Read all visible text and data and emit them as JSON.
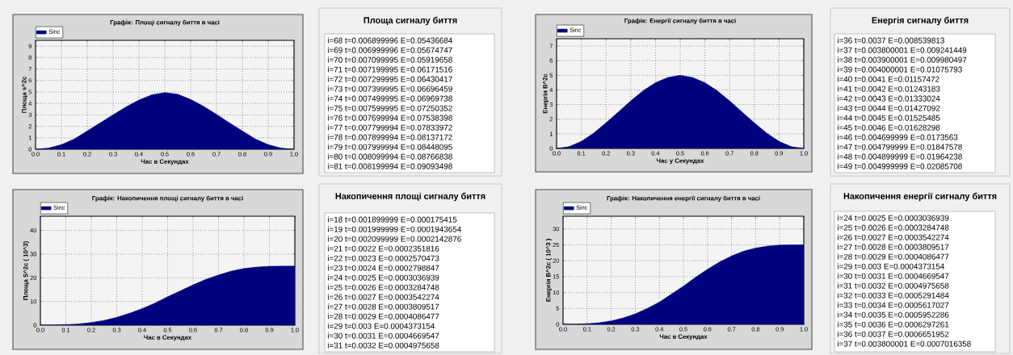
{
  "chart_data": [
    {
      "type": "area",
      "title": "Графік: Площі сигналу биття в часі",
      "xlabel": "Час в Секундах",
      "ylabel": "Площа s^2c",
      "legend": "top left",
      "grid": true,
      "x": [
        0,
        0.05,
        0.1,
        0.15,
        0.2,
        0.25,
        0.3,
        0.35,
        0.4,
        0.45,
        0.5,
        0.55,
        0.6,
        0.65,
        0.7,
        0.75,
        0.8,
        0.85,
        0.9,
        0.95,
        1.0
      ],
      "series": [
        {
          "name": "Sinc",
          "color": "#00007f",
          "values": [
            0,
            0.1,
            0.4,
            0.9,
            1.6,
            2.3,
            3.0,
            3.7,
            4.3,
            4.75,
            4.95,
            4.8,
            4.35,
            3.75,
            3.05,
            2.3,
            1.6,
            0.9,
            0.4,
            0.1,
            0
          ]
        }
      ],
      "xlim": [
        0,
        1.0
      ],
      "ylim": [
        0,
        9.5
      ],
      "xticks": [
        {
          "value": 0,
          "label": "0.0"
        },
        {
          "value": 0.1,
          "label": "0.1"
        },
        {
          "value": 0.2,
          "label": "0.2"
        },
        {
          "value": 0.3,
          "label": "0.3"
        },
        {
          "value": 0.4,
          "label": "0.4"
        },
        {
          "value": 0.5,
          "label": "0.5"
        },
        {
          "value": 0.6,
          "label": "0.6"
        },
        {
          "value": 0.7,
          "label": "0.7"
        },
        {
          "value": 0.8,
          "label": "0.8"
        },
        {
          "value": 0.9,
          "label": "0.9"
        },
        {
          "value": 1.0,
          "label": "1.0"
        }
      ],
      "yticks": [
        0,
        1,
        2,
        3,
        4,
        5,
        6,
        7,
        8,
        9
      ]
    },
    {
      "type": "other",
      "title": "Площа сигналу биття",
      "annotations": [
        "i=68 t=0.006899996 E=0.05436684",
        "i=69 t=0.006999996 E=0.05674747",
        "i=70 t=0.007099995 E=0.05919658",
        "i=71 t=0.007199995 E=0.06171516",
        "i=72 t=0.007299995 E=0.06430417",
        "i=73 t=0.007399995 E=0.06696459",
        "i=74 t=0.007499995 E=0.06969738",
        "i=75 t=0.007599995 E=0.07250352",
        "i=76 t=0.007699994 E=0.07538398",
        "i=77 t=0.007799994 E=0.07833972",
        "i=78 t=0.007899994 E=0.08137172",
        "i=79 t=0.007999994 E=0.08448095",
        "i=80 t=0.008099994 E=0.08766838",
        "i=81 t=0.008199994 E=0.09093498"
      ]
    },
    {
      "type": "area",
      "title": "Графік: Енергії сигналу биття в часі",
      "xlabel": "Час у Секундах",
      "ylabel": "Енергія B^2c",
      "legend": "top left",
      "grid": true,
      "x": [
        0,
        0.05,
        0.1,
        0.15,
        0.2,
        0.25,
        0.3,
        0.35,
        0.4,
        0.45,
        0.5,
        0.55,
        0.6,
        0.65,
        0.7,
        0.75,
        0.8,
        0.85,
        0.9,
        0.95,
        1.0
      ],
      "series": [
        {
          "name": "Sinc",
          "color": "#00007f",
          "values": [
            0,
            0.12,
            0.48,
            1.05,
            1.75,
            2.5,
            3.25,
            3.95,
            4.5,
            4.85,
            5.0,
            4.85,
            4.5,
            3.95,
            3.25,
            2.5,
            1.75,
            1.05,
            0.48,
            0.12,
            0
          ]
        }
      ],
      "xlim": [
        0,
        1.0
      ],
      "ylim": [
        0,
        7.5
      ],
      "xticks": [
        {
          "value": 0,
          "label": "0.0"
        },
        {
          "value": 0.1,
          "label": "0.1"
        },
        {
          "value": 0.2,
          "label": "0.2"
        },
        {
          "value": 0.3,
          "label": "0.3"
        },
        {
          "value": 0.4,
          "label": "0.4"
        },
        {
          "value": 0.5,
          "label": "0.5"
        },
        {
          "value": 0.6,
          "label": "0.6"
        },
        {
          "value": 0.7,
          "label": "0.7"
        },
        {
          "value": 0.8,
          "label": "0.8"
        },
        {
          "value": 0.9,
          "label": "0.9"
        },
        {
          "value": 1.0,
          "label": "1.0"
        }
      ],
      "yticks": [
        0,
        1,
        2,
        3,
        4,
        5,
        6,
        7
      ]
    },
    {
      "type": "other",
      "title": "Енергія сигналу биття",
      "annotations": [
        "i=36 t=0.0037 E=0.008539813",
        "i=37 t=0.003800001 E=0.009241449",
        "i=38 t=0.003900001 E=0.009980497",
        "i=39 t=0.004000001 E=0.01075793",
        "i=40 t=0.0041 E=0.01157472",
        "i=41 t=0.0042 E=0.01243183",
        "i=42 t=0.0043 E=0.01333024",
        "i=43 t=0.0044 E=0.01427092",
        "i=44 t=0.0045 E=0.01525485",
        "i=45 t=0.0046 E=0.01628298",
        "i=46 t=0.004699999 E=0.0173563",
        "i=47 t=0.004799999 E=0.01847578",
        "i=48 t=0.004899999 E=0.01964238",
        "i=49 t=0.004999999 E=0.02085708"
      ]
    },
    {
      "type": "area",
      "title": "Графік: Накопичення площі сигналу биття в часі",
      "xlabel": "Час в Секундах",
      "ylabel": "Площа S^2c ( 10^3)",
      "legend": "top left",
      "grid": true,
      "x": [
        0,
        0.05,
        0.1,
        0.15,
        0.2,
        0.25,
        0.3,
        0.35,
        0.4,
        0.45,
        0.5,
        0.55,
        0.6,
        0.65,
        0.7,
        0.75,
        0.8,
        0.85,
        0.9,
        0.95,
        1.0
      ],
      "series": [
        {
          "name": "Sinc",
          "color": "#00007f",
          "values": [
            0,
            0,
            0.2,
            0.5,
            1.1,
            2.0,
            3.3,
            5.0,
            7.0,
            9.3,
            12.0,
            14.5,
            17.0,
            19.3,
            21.2,
            22.8,
            23.9,
            24.5,
            24.9,
            25.0,
            25.0
          ]
        }
      ],
      "xlim": [
        0,
        1.0
      ],
      "ylim": [
        0,
        46
      ],
      "xticks": [
        {
          "value": 0,
          "label": "0.0"
        },
        {
          "value": 0.1,
          "label": "0.1"
        },
        {
          "value": 0.2,
          "label": "0.2"
        },
        {
          "value": 0.3,
          "label": "0.3"
        },
        {
          "value": 0.4,
          "label": "0.4"
        },
        {
          "value": 0.5,
          "label": "0.5"
        },
        {
          "value": 0.6,
          "label": "0.6"
        },
        {
          "value": 0.7,
          "label": "0.7"
        },
        {
          "value": 0.8,
          "label": "0.8"
        },
        {
          "value": 0.9,
          "label": "0.9"
        },
        {
          "value": 1.0,
          "label": "1.0"
        }
      ],
      "yticks": [
        0,
        10,
        20,
        30,
        40
      ]
    },
    {
      "type": "other",
      "title": "Накопичення площі сигналу биття",
      "annotations": [
        "i=18 t=0.001899999 E=0.000175415",
        "i=19 t=0.001999999 E=0.0001943654",
        "i=20 t=0.002099999 E=0.0002142876",
        "i=21 t=0.0022 E=0.0002351816",
        "i=22 t=0.0023 E=0.0002570473",
        "i=23 t=0.0024 E=0.0002798847",
        "i=24 t=0.0025 E=0.0003036939",
        "i=25 t=0.0026 E=0.0003284748",
        "i=26 t=0.0027 E=0.0003542274",
        "i=27 t=0.0028 E=0.0003809517",
        "i=28 t=0.0029 E=0.0004086477",
        "i=29 t=0.003 E=0.0004373154",
        "i=30 t=0.0031 E=0.0004669547",
        "i=31 t=0.0032 E=0.0004975658"
      ]
    },
    {
      "type": "area",
      "title": "Графік: Накопичення енергії сигналу биття в часі",
      "xlabel": "Час в Секундах",
      "ylabel": "Енергія B^2c ( 10^3 )",
      "legend": "top left",
      "grid": true,
      "x": [
        0,
        0.05,
        0.1,
        0.15,
        0.2,
        0.25,
        0.3,
        0.35,
        0.4,
        0.45,
        0.5,
        0.55,
        0.6,
        0.65,
        0.7,
        0.75,
        0.8,
        0.85,
        0.9,
        0.95,
        1.0
      ],
      "series": [
        {
          "name": "Sinc",
          "color": "#00007f",
          "values": [
            0,
            0,
            0.2,
            0.5,
            1.1,
            2.0,
            3.3,
            5.0,
            7.0,
            9.5,
            12.0,
            14.8,
            17.3,
            19.6,
            21.5,
            23.0,
            24.0,
            24.6,
            24.9,
            25.0,
            25.0
          ]
        }
      ],
      "xlim": [
        0,
        1.0
      ],
      "ylim": [
        0,
        34
      ],
      "xticks": [
        {
          "value": 0,
          "label": "0.0"
        },
        {
          "value": 0.1,
          "label": "0.1"
        },
        {
          "value": 0.2,
          "label": "0.2"
        },
        {
          "value": 0.3,
          "label": "0.3"
        },
        {
          "value": 0.4,
          "label": "0.4"
        },
        {
          "value": 0.5,
          "label": "0.5"
        },
        {
          "value": 0.6,
          "label": "0.6"
        },
        {
          "value": 0.7,
          "label": "0.7"
        },
        {
          "value": 0.8,
          "label": "0.8"
        },
        {
          "value": 0.9,
          "label": "0.9"
        },
        {
          "value": 1.0,
          "label": "1.0"
        }
      ],
      "yticks": [
        0,
        5,
        10,
        15,
        20,
        25,
        30
      ]
    },
    {
      "type": "other",
      "title": "Накопичення енергії сигналу биття",
      "annotations": [
        "i=24 t=0.0025 E=0.0003036939",
        "i=25 t=0.0026 E=0.0003284748",
        "i=26 t=0.0027 E=0.0003542274",
        "i=27 t=0.0028 E=0.0003809517",
        "i=28 t=0.0029 E=0.0004086477",
        "i=29 t=0.003 E=0.0004373154",
        "i=30 t=0.0031 E=0.0004669547",
        "i=31 t=0.0032 E=0.0004975658",
        "i=32 t=0.0033 E=0.0005291484",
        "i=33 t=0.0034 E=0.0005617027",
        "i=34 t=0.0035 E=0.0005952286",
        "i=35 t=0.0036 E=0.0006297261",
        "i=36 t=0.0037 E=0.0006651952",
        "i=37 t=0.003800001 E=0.0007016358"
      ]
    }
  ]
}
